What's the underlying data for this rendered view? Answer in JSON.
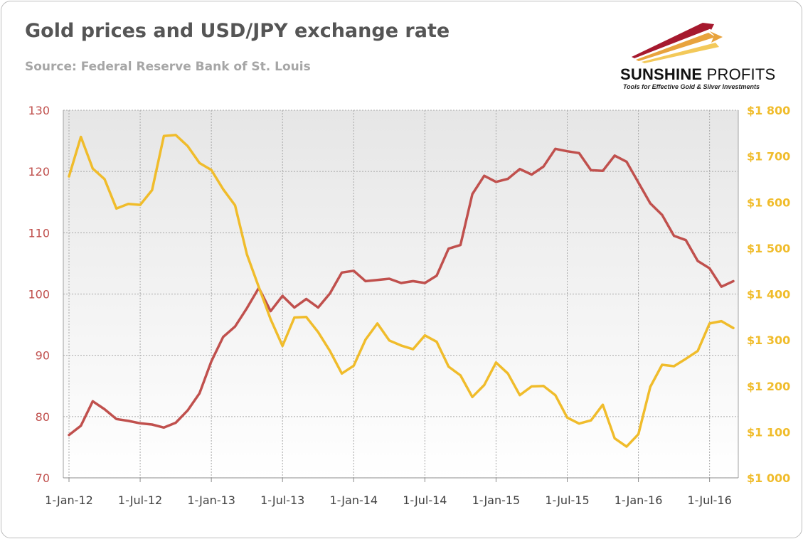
{
  "header": {
    "title": "Gold prices and USD/JPY exchange rate",
    "source": "Source: Federal Reserve Bank of St. Louis"
  },
  "logo": {
    "name_bold": "SUNSHINE",
    "name_light": "PROFITS",
    "tagline": "Tools for Effective Gold & Silver Investments",
    "colors": [
      "#a6192e",
      "#e8a33d",
      "#f3c95a"
    ]
  },
  "chart_data": {
    "type": "line",
    "title": "Gold prices and USD/JPY exchange rate",
    "x": [
      "2012-01",
      "2012-02",
      "2012-03",
      "2012-04",
      "2012-05",
      "2012-06",
      "2012-07",
      "2012-08",
      "2012-09",
      "2012-10",
      "2012-11",
      "2012-12",
      "2013-01",
      "2013-02",
      "2013-03",
      "2013-04",
      "2013-05",
      "2013-06",
      "2013-07",
      "2013-08",
      "2013-09",
      "2013-10",
      "2013-11",
      "2013-12",
      "2014-01",
      "2014-02",
      "2014-03",
      "2014-04",
      "2014-05",
      "2014-06",
      "2014-07",
      "2014-08",
      "2014-09",
      "2014-10",
      "2014-11",
      "2014-12",
      "2015-01",
      "2015-02",
      "2015-03",
      "2015-04",
      "2015-05",
      "2015-06",
      "2015-07",
      "2015-08",
      "2015-09",
      "2015-10",
      "2015-11",
      "2015-12",
      "2016-01",
      "2016-02",
      "2016-03",
      "2016-04",
      "2016-05",
      "2016-06",
      "2016-07",
      "2016-08",
      "2016-09"
    ],
    "x_tick_labels": [
      "1-Jan-12",
      "1-Jul-12",
      "1-Jan-13",
      "1-Jul-13",
      "1-Jan-14",
      "1-Jul-14",
      "1-Jan-15",
      "1-Jul-15",
      "1-Jan-16",
      "1-Jul-16"
    ],
    "y_left": {
      "range": [
        70,
        130
      ],
      "ticks": [
        "70",
        "80",
        "90",
        "100",
        "110",
        "120",
        "130"
      ],
      "color": "#c0504d"
    },
    "y_right": {
      "range": [
        1000,
        1800
      ],
      "ticks": [
        "$1 000",
        "$1 100",
        "$1 200",
        "$1 300",
        "$1 400",
        "$1 500",
        "$1 600",
        "$1 700",
        "$1 800"
      ],
      "color": "#f0bc2b"
    },
    "grid": true,
    "series": [
      {
        "name": "USD/JPY",
        "axis": "left",
        "color": "#c0504d",
        "values": [
          77.0,
          78.5,
          82.5,
          81.2,
          79.6,
          79.3,
          78.9,
          78.7,
          78.2,
          79.0,
          81.0,
          83.8,
          89.0,
          93.0,
          94.7,
          97.7,
          101.0,
          97.2,
          99.7,
          97.8,
          99.2,
          97.8,
          100.1,
          103.5,
          103.8,
          102.1,
          102.3,
          102.5,
          101.8,
          102.1,
          101.8,
          103.0,
          107.4,
          108.0,
          116.3,
          119.3,
          118.3,
          118.8,
          120.4,
          119.5,
          120.8,
          123.7,
          123.3,
          123.0,
          120.2,
          120.1,
          122.6,
          121.6,
          118.2,
          114.8,
          112.9,
          109.5,
          108.8,
          105.4,
          104.2,
          101.2,
          102.1
        ]
      },
      {
        "name": "Gold price",
        "axis": "right",
        "color": "#f0bc2b",
        "values": [
          1656,
          1742,
          1673,
          1650,
          1586,
          1596,
          1594,
          1626,
          1744,
          1746,
          1722,
          1685,
          1670,
          1628,
          1593,
          1486,
          1415,
          1345,
          1287,
          1349,
          1350,
          1317,
          1276,
          1227,
          1244,
          1301,
          1336,
          1299,
          1288,
          1280,
          1310,
          1296,
          1242,
          1223,
          1176,
          1202,
          1251,
          1227,
          1180,
          1199,
          1200,
          1180,
          1131,
          1118,
          1125,
          1159,
          1086,
          1068,
          1095,
          1198,
          1246,
          1243,
          1259,
          1276,
          1336,
          1341,
          1326
        ]
      }
    ]
  }
}
